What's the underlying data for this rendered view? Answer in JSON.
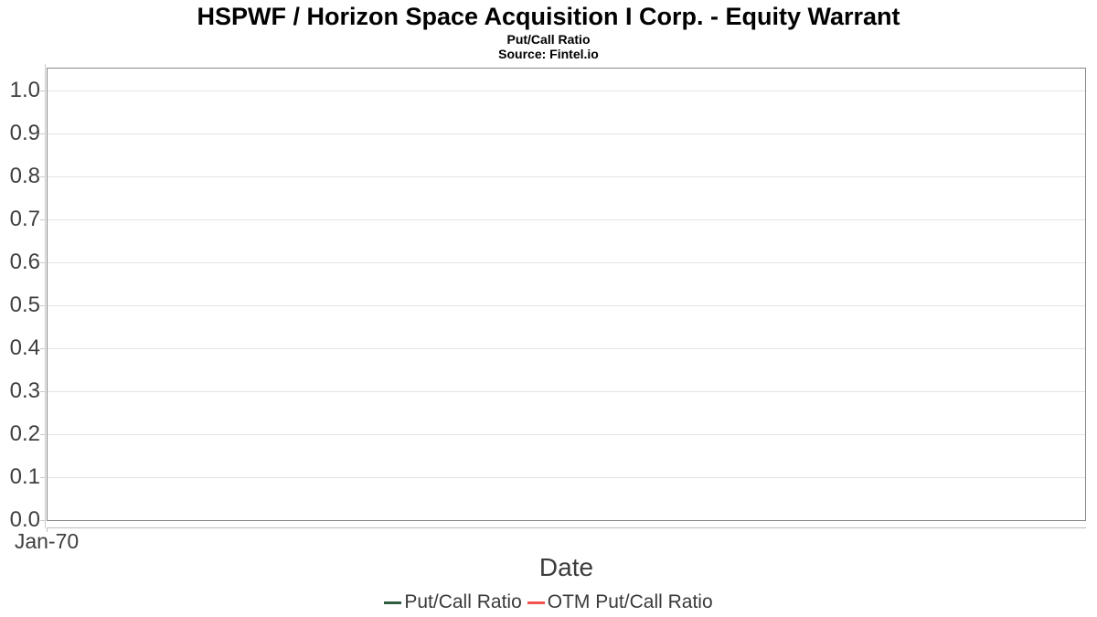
{
  "chart_data": {
    "type": "line",
    "title": "HSPWF / Horizon Space Acquisition I Corp. - Equity Warrant",
    "subtitle": "Put/Call Ratio",
    "source": "Source: Fintel.io",
    "xlabel": "Date",
    "ylabel": "",
    "x_tick_labels": [
      "Jan-70"
    ],
    "y_tick_values": [
      0.0,
      0.1,
      0.2,
      0.3,
      0.4,
      0.5,
      0.6,
      0.7,
      0.8,
      0.9,
      1.0
    ],
    "y_tick_labels": [
      "0.0",
      "0.1",
      "0.2",
      "0.3",
      "0.4",
      "0.5",
      "0.6",
      "0.7",
      "0.8",
      "0.9",
      "1.0"
    ],
    "ylim": [
      0,
      1.055
    ],
    "grid": true,
    "legend_position": "bottom",
    "series": [
      {
        "name": "Put/Call Ratio",
        "color": "#2e5d40",
        "x": [],
        "values": []
      },
      {
        "name": "OTM Put/Call Ratio",
        "color": "#f4534e",
        "x": [],
        "values": []
      }
    ]
  }
}
